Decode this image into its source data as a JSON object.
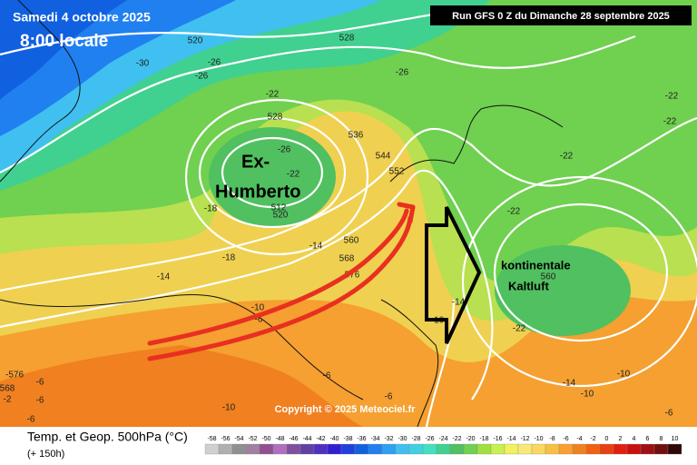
{
  "header": {
    "date": "Samedi 4 octobre 2025",
    "time": "8:00 locale",
    "run": "Run GFS 0 Z du Dimanche 28 septembre 2025"
  },
  "annotations": {
    "storm": [
      "Ex-",
      "Humberto"
    ],
    "cold_air": [
      "kontinentale",
      "Kaltluft"
    ]
  },
  "copyright": "Copyright © 2025 Meteociel.fr",
  "footer": {
    "title": "Temp. et Geop. 500hPa (°C)",
    "lead": "(+ 150h)"
  },
  "contour_labels": [
    "520",
    "528",
    "-30",
    "-26",
    "-26",
    "-26",
    "-22",
    "528",
    "536",
    "544",
    "-26",
    "-22",
    "552",
    "512",
    "520",
    "-18",
    "-14",
    "560",
    "568",
    "576",
    "-18",
    "-14",
    "-10",
    "-6",
    "-14",
    "-10",
    "-22",
    "-22",
    "-22",
    "-22",
    "560",
    "-14",
    "-10",
    "-10",
    "-6",
    "-6",
    "-6",
    "-10",
    "-576",
    "568",
    "-6",
    "-6",
    "-6",
    "-2",
    "-22"
  ],
  "legend": {
    "ticks": [
      "-58",
      "-56",
      "-54",
      "-52",
      "-50",
      "-48",
      "-46",
      "-44",
      "-42",
      "-40",
      "-38",
      "-36",
      "-34",
      "-32",
      "-30",
      "-28",
      "-26",
      "-24",
      "-22",
      "-20",
      "-18",
      "-16",
      "-14",
      "-12",
      "-10",
      "-8",
      "-6",
      "-4",
      "-2",
      "0",
      "2",
      "4",
      "6",
      "8",
      "10"
    ],
    "colors": [
      "#d0d0d0",
      "#b0b0b0",
      "#909090",
      "#a080a0",
      "#905090",
      "#b070c0",
      "#8050a0",
      "#6040a0",
      "#5030c0",
      "#3020d0",
      "#2040e0",
      "#1060e0",
      "#2080f0",
      "#30a0f0",
      "#40c0f0",
      "#40d0e0",
      "#40e0c0",
      "#40d090",
      "#50c060",
      "#70d050",
      "#a0e040",
      "#c8f050",
      "#f0f060",
      "#f8e878",
      "#f8d860",
      "#f8c040",
      "#f8a030",
      "#f08020",
      "#f06010",
      "#e84010",
      "#e02010",
      "#c81010",
      "#a01010",
      "#701010",
      "#300808"
    ]
  }
}
